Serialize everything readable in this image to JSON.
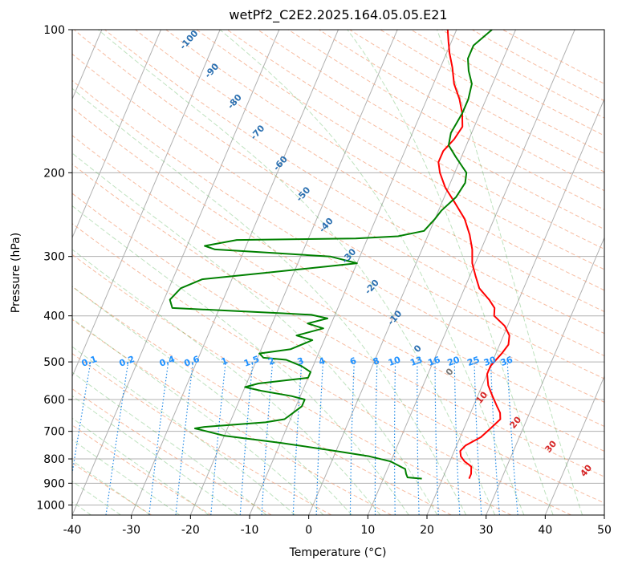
{
  "chart_data": {
    "type": "line",
    "subtype": "skew-T log-P diagram",
    "title": "wetPf2_C2E2.2025.164.05.05.E21",
    "xlabel": "Temperature (°C)",
    "ylabel": "Pressure (hPa)",
    "xlim": [
      -40,
      50
    ],
    "ylim": [
      1050,
      100
    ],
    "y_scale": "log",
    "grid": true,
    "x_ticks": [
      -40,
      -30,
      -20,
      -10,
      0,
      10,
      20,
      30,
      40,
      50
    ],
    "y_ticks": [
      100,
      200,
      300,
      400,
      500,
      600,
      700,
      800,
      900,
      1000
    ],
    "series": [
      {
        "role": "temperature",
        "color": "#ff0000",
        "points": [
          [
            24.5,
            880
          ],
          [
            24.5,
            860
          ],
          [
            24.0,
            830
          ],
          [
            22.5,
            810
          ],
          [
            21.5,
            790
          ],
          [
            21.0,
            770
          ],
          [
            21.5,
            750
          ],
          [
            23.5,
            720
          ],
          [
            24.5,
            690
          ],
          [
            25.5,
            660
          ],
          [
            25.0,
            640
          ],
          [
            24.0,
            620
          ],
          [
            22.5,
            590
          ],
          [
            21.0,
            560
          ],
          [
            20.0,
            530
          ],
          [
            20.0,
            510
          ],
          [
            21.0,
            480
          ],
          [
            21.5,
            460
          ],
          [
            21.0,
            440
          ],
          [
            19.5,
            420
          ],
          [
            17.0,
            400
          ],
          [
            16.5,
            385
          ],
          [
            15.0,
            370
          ],
          [
            12.5,
            350
          ],
          [
            11.0,
            330
          ],
          [
            9.5,
            310
          ],
          [
            8.5,
            290
          ],
          [
            7.0,
            270
          ],
          [
            5.0,
            250
          ],
          [
            2.0,
            230
          ],
          [
            -0.5,
            215
          ],
          [
            -2.5,
            200
          ],
          [
            -3.5,
            190
          ],
          [
            -3.5,
            180
          ],
          [
            -2.5,
            170
          ],
          [
            -2.0,
            160
          ],
          [
            -3.0,
            150
          ],
          [
            -4.5,
            140
          ],
          [
            -6.5,
            130
          ],
          [
            -8.0,
            120
          ],
          [
            -9.5,
            112
          ],
          [
            -10.5,
            106
          ],
          [
            -11.5,
            100
          ]
        ]
      },
      {
        "role": "dewpoint",
        "color": "#008000",
        "points": [
          [
            16.5,
            880
          ],
          [
            14.0,
            875
          ],
          [
            13.5,
            860
          ],
          [
            13.0,
            840
          ],
          [
            12.0,
            830
          ],
          [
            10.0,
            810
          ],
          [
            6.0,
            790
          ],
          [
            0.0,
            770
          ],
          [
            -10.0,
            740
          ],
          [
            -20.0,
            715
          ],
          [
            -25.5,
            690
          ],
          [
            -24.0,
            685
          ],
          [
            -14.0,
            670
          ],
          [
            -11.0,
            660
          ],
          [
            -10.0,
            640
          ],
          [
            -9.0,
            620
          ],
          [
            -9.0,
            600
          ],
          [
            -11.5,
            590
          ],
          [
            -17.0,
            575
          ],
          [
            -20.0,
            565
          ],
          [
            -18.0,
            555
          ],
          [
            -10.0,
            540
          ],
          [
            -10.0,
            525
          ],
          [
            -12.0,
            510
          ],
          [
            -15.0,
            495
          ],
          [
            -19.0,
            490
          ],
          [
            -20.0,
            480
          ],
          [
            -15.0,
            470
          ],
          [
            -12.0,
            450
          ],
          [
            -15.0,
            440
          ],
          [
            -11.0,
            425
          ],
          [
            -14.0,
            415
          ],
          [
            -11.0,
            405
          ],
          [
            -14.0,
            398
          ],
          [
            -19.0,
            395
          ],
          [
            -38.0,
            385
          ],
          [
            -39.0,
            370
          ],
          [
            -38.0,
            350
          ],
          [
            -35.0,
            335
          ],
          [
            -25.0,
            325
          ],
          [
            -15.0,
            315
          ],
          [
            -10.0,
            310
          ],
          [
            -15.0,
            300
          ],
          [
            -25.0,
            295
          ],
          [
            -35.0,
            290
          ],
          [
            -37.0,
            285
          ],
          [
            -32.0,
            277
          ],
          [
            -12.0,
            275
          ],
          [
            -5.0,
            272
          ],
          [
            -1.0,
            265
          ],
          [
            0.0,
            250
          ],
          [
            0.5,
            240
          ],
          [
            2.0,
            225
          ],
          [
            2.5,
            210
          ],
          [
            2.0,
            200
          ],
          [
            -1.0,
            185
          ],
          [
            -3.0,
            175
          ],
          [
            -3.5,
            165
          ],
          [
            -3.0,
            150
          ],
          [
            -3.0,
            140
          ],
          [
            -3.5,
            130
          ],
          [
            -5.0,
            122
          ],
          [
            -6.0,
            115
          ],
          [
            -6.0,
            108
          ],
          [
            -4.0,
            100
          ]
        ]
      }
    ],
    "dry_adiabat_labels": [
      -100,
      -90,
      -80,
      -70,
      -60,
      -50,
      -40,
      -30,
      -20,
      -10,
      0
    ],
    "moist_adiabat_labels": [
      0,
      10,
      20,
      30,
      40
    ],
    "mixing_ratio_labels": [
      "0.1",
      "0.2",
      "0.4",
      "0.6",
      "1",
      "1.5",
      "2",
      "3",
      "4",
      "6",
      "8",
      "10",
      "13",
      "16",
      "20",
      "25",
      "30",
      "36"
    ]
  }
}
